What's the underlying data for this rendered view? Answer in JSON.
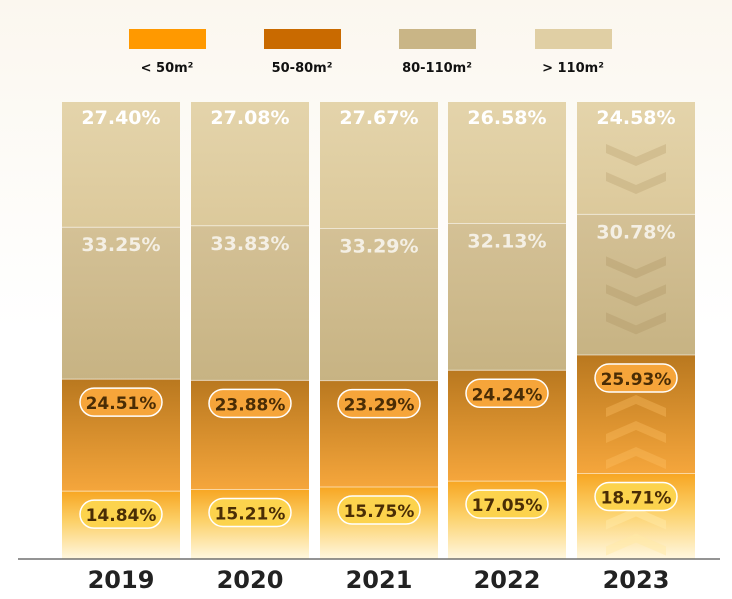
{
  "chart_data": {
    "type": "bar",
    "stacked": true,
    "percent": true,
    "categories": [
      "2019",
      "2020",
      "2021",
      "2022",
      "2023"
    ],
    "series": [
      {
        "name": "< 50m²",
        "color": "#ff9900",
        "values": [
          14.84,
          15.21,
          15.75,
          17.05,
          18.71
        ],
        "labels": [
          "14.84%",
          "15.21%",
          "15.75%",
          "17.05%",
          "18.71%"
        ]
      },
      {
        "name": "50-80m²",
        "color": "#c96a00",
        "values": [
          24.51,
          23.88,
          23.29,
          24.24,
          25.93
        ],
        "labels": [
          "24.51%",
          "23.88%",
          "23.29%",
          "24.24%",
          "25.93%"
        ]
      },
      {
        "name": "80-110m²",
        "color": "#c9b586",
        "values": [
          33.25,
          33.83,
          33.29,
          32.13,
          30.78
        ],
        "labels": [
          "33.25%",
          "33.83%",
          "33.29%",
          "32.13%",
          "30.78%"
        ]
      },
      {
        "name": "> 110m²",
        "color": "#e0cfa4",
        "values": [
          27.4,
          27.08,
          27.67,
          26.58,
          24.58
        ],
        "labels": [
          "27.40%",
          "27.08%",
          "27.67%",
          "26.58%",
          "24.58%"
        ]
      }
    ],
    "legend_position": "top",
    "highlighted_category": "2023",
    "colors": {
      "bubble_fill_small": "#fcd34d",
      "bubble_fill_mid": "#f6a53a",
      "bubble_stroke": "#ffffff",
      "dark_label": "#4a2d05",
      "light_label": "#ffffff",
      "axis": "#555555",
      "year_text": "#222222"
    }
  }
}
